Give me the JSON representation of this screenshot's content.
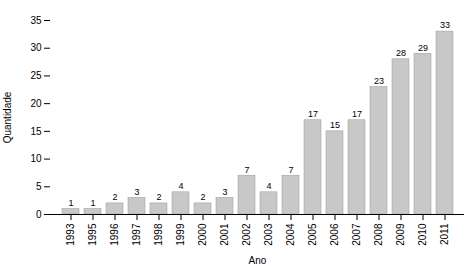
{
  "chart_data": {
    "type": "bar",
    "categories": [
      "1993",
      "1995",
      "1996",
      "1997",
      "1998",
      "1999",
      "2000",
      "2001",
      "2002",
      "2003",
      "2004",
      "2005",
      "2006",
      "2007",
      "2008",
      "2009",
      "2010",
      "2011"
    ],
    "values": [
      1,
      1,
      2,
      3,
      2,
      4,
      2,
      3,
      7,
      4,
      7,
      17,
      15,
      17,
      23,
      28,
      29,
      33
    ],
    "color": "#c8c8c8",
    "xlabel": "Ano",
    "ylabel": "Quantidade",
    "ylim": [
      0,
      35
    ],
    "yticks": [
      0,
      5,
      10,
      15,
      20,
      25,
      30,
      35
    ],
    "grid": false,
    "data_labels": true
  }
}
